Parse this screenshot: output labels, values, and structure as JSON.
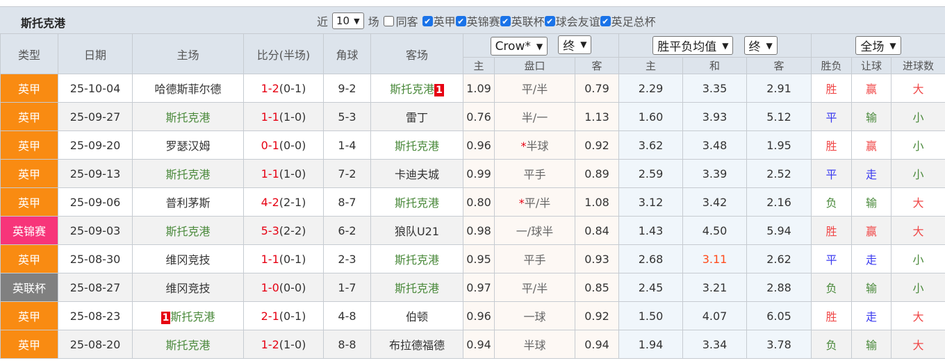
{
  "team_title": "斯托克港",
  "filters": {
    "recent_prefix": "近",
    "recent_count": "10",
    "recent_suffix": "场",
    "same_away_label": "同客",
    "same_away_checked": false,
    "leagues": [
      {
        "label": "英甲",
        "checked": true
      },
      {
        "label": "英锦赛",
        "checked": true
      },
      {
        "label": "英联杯",
        "checked": true
      },
      {
        "label": "球会友谊",
        "checked": true
      },
      {
        "label": "英足总杯",
        "checked": true
      }
    ]
  },
  "headers": {
    "type": "类型",
    "date": "日期",
    "home": "主场",
    "score": "比分(半场)",
    "corner": "角球",
    "away": "客场",
    "handicap_company": "Crow*",
    "handicap_stage": "终",
    "euro_company": "胜平负均值",
    "euro_stage": "终",
    "period": "全场",
    "sub": [
      "主",
      "盘口",
      "客",
      "主",
      "和",
      "客",
      "胜负",
      "让球",
      "进球数"
    ]
  },
  "colors": {
    "英甲": "#f98b12",
    "英锦赛": "#f7357a",
    "英联杯": "#808080",
    "win": "#f04848",
    "draw": "#3a3af0",
    "loss": "#4b8a3c",
    "highlight": "#ff4a1a"
  },
  "rows": [
    {
      "type": "英甲",
      "date": "25-10-04",
      "home": "哈德斯菲尔德",
      "home_team": false,
      "away": "斯托克港",
      "away_team": true,
      "away_badge": "1",
      "ft": "1-2",
      "ht": "(0-1)",
      "corner": "9-2",
      "h_home": "1.09",
      "line": "平/半",
      "line_star": false,
      "h_away": "0.79",
      "e_home": "2.29",
      "e_draw": "3.35",
      "e_away": "2.91",
      "res": "胜",
      "ah": "赢",
      "ou": "大"
    },
    {
      "type": "英甲",
      "date": "25-09-27",
      "home": "斯托克港",
      "home_team": true,
      "away": "雷丁",
      "away_team": false,
      "ft": "1-1",
      "ht": "(1-0)",
      "corner": "5-3",
      "h_home": "0.76",
      "line": "半/一",
      "line_star": false,
      "h_away": "1.13",
      "e_home": "1.60",
      "e_draw": "3.93",
      "e_away": "5.12",
      "res": "平",
      "ah": "输",
      "ou": "小"
    },
    {
      "type": "英甲",
      "date": "25-09-20",
      "home": "罗瑟汉姆",
      "home_team": false,
      "away": "斯托克港",
      "away_team": true,
      "ft": "0-1",
      "ht": "(0-0)",
      "corner": "1-4",
      "h_home": "0.96",
      "line": "半球",
      "line_star": true,
      "h_away": "0.92",
      "e_home": "3.62",
      "e_draw": "3.48",
      "e_away": "1.95",
      "res": "胜",
      "ah": "赢",
      "ou": "小"
    },
    {
      "type": "英甲",
      "date": "25-09-13",
      "home": "斯托克港",
      "home_team": true,
      "away": "卡迪夫城",
      "away_team": false,
      "ft": "1-1",
      "ht": "(1-0)",
      "corner": "7-2",
      "h_home": "0.99",
      "line": "平手",
      "line_star": false,
      "h_away": "0.89",
      "e_home": "2.59",
      "e_draw": "3.39",
      "e_away": "2.52",
      "res": "平",
      "ah": "走",
      "ou": "小"
    },
    {
      "type": "英甲",
      "date": "25-09-06",
      "home": "普利茅斯",
      "home_team": false,
      "away": "斯托克港",
      "away_team": true,
      "ft": "4-2",
      "ht": "(2-1)",
      "corner": "8-7",
      "h_home": "0.80",
      "line": "平/半",
      "line_star": true,
      "h_away": "1.08",
      "e_home": "3.12",
      "e_draw": "3.42",
      "e_away": "2.16",
      "res": "负",
      "ah": "输",
      "ou": "大"
    },
    {
      "type": "英锦赛",
      "date": "25-09-03",
      "home": "斯托克港",
      "home_team": true,
      "away": "狼队U21",
      "away_team": false,
      "ft": "5-3",
      "ht": "(2-2)",
      "corner": "6-2",
      "h_home": "0.98",
      "line": "一/球半",
      "line_star": false,
      "h_away": "0.84",
      "e_home": "1.43",
      "e_draw": "4.50",
      "e_away": "5.94",
      "res": "胜",
      "ah": "赢",
      "ou": "大"
    },
    {
      "type": "英甲",
      "date": "25-08-30",
      "home": "维冈竞技",
      "home_team": false,
      "away": "斯托克港",
      "away_team": true,
      "ft": "1-1",
      "ht": "(0-1)",
      "corner": "2-3",
      "h_home": "0.95",
      "line": "平手",
      "line_star": false,
      "h_away": "0.93",
      "e_home": "2.68",
      "e_draw": "3.11",
      "e_draw_hl": true,
      "e_away": "2.62",
      "res": "平",
      "ah": "走",
      "ou": "小"
    },
    {
      "type": "英联杯",
      "date": "25-08-27",
      "home": "维冈竞技",
      "home_team": false,
      "away": "斯托克港",
      "away_team": true,
      "ft": "1-0",
      "ht": "(0-0)",
      "corner": "1-7",
      "h_home": "0.97",
      "line": "平/半",
      "line_star": false,
      "h_away": "0.85",
      "e_home": "2.45",
      "e_draw": "3.21",
      "e_away": "2.88",
      "res": "负",
      "ah": "输",
      "ou": "小"
    },
    {
      "type": "英甲",
      "date": "25-08-23",
      "home": "斯托克港",
      "home_team": true,
      "home_badge": "1",
      "away": "伯顿",
      "away_team": false,
      "ft": "2-1",
      "ht": "(0-1)",
      "corner": "4-8",
      "h_home": "0.96",
      "line": "一球",
      "line_star": false,
      "h_away": "0.92",
      "e_home": "1.50",
      "e_draw": "4.07",
      "e_away": "6.05",
      "res": "胜",
      "ah": "走",
      "ou": "大"
    },
    {
      "type": "英甲",
      "date": "25-08-20",
      "home": "斯托克港",
      "home_team": true,
      "away": "布拉德福德",
      "away_team": false,
      "ft": "1-2",
      "ht": "(1-0)",
      "corner": "8-8",
      "h_home": "0.94",
      "line": "半球",
      "line_star": false,
      "h_away": "0.94",
      "e_home": "1.94",
      "e_draw": "3.34",
      "e_away": "3.78",
      "res": "负",
      "ah": "输",
      "ou": "大"
    }
  ]
}
